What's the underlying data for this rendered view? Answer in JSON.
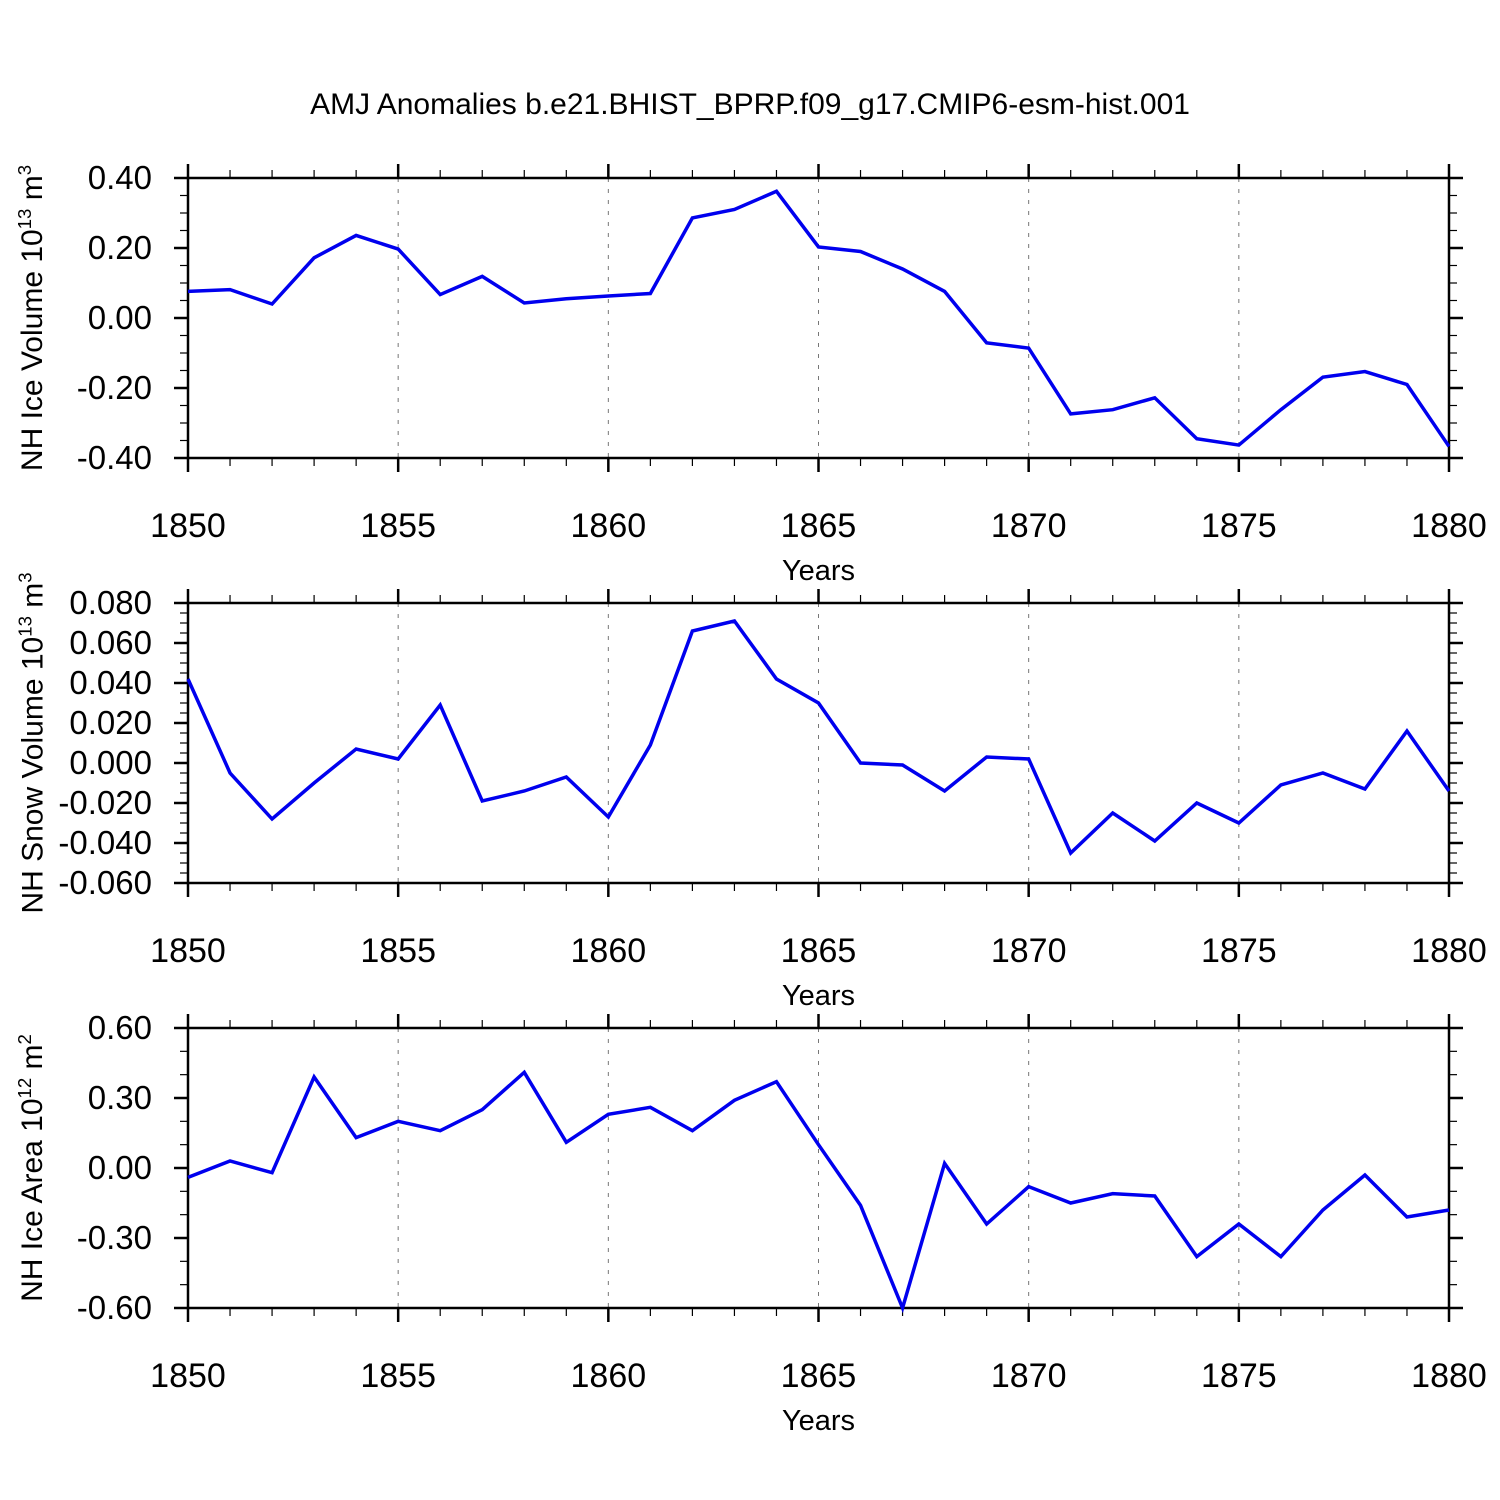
{
  "title": "AMJ Anomalies b.e21.BHIST_BPRP.f09_g17.CMIP6-esm-hist.001",
  "colors": {
    "line": "#0000EE",
    "grid": "#777777",
    "axis": "#000000",
    "background": "#ffffff"
  },
  "x_axis": {
    "label": "Years",
    "start": 1850,
    "end": 1880,
    "major_ticks": [
      1850,
      1855,
      1860,
      1865,
      1870,
      1875,
      1880
    ],
    "tick_labels": [
      "1850",
      "1855",
      "1860",
      "1865",
      "1870",
      "1875",
      "1880"
    ],
    "minor_step": 1,
    "gridline_years": [
      1855,
      1860,
      1865,
      1870,
      1875
    ]
  },
  "chart_data": [
    {
      "type": "line",
      "name": "nh-ice-volume",
      "ylabel": "NH Ice Volume 10^13 m^3",
      "ylabel_parts": [
        [
          "NH Ice Volume 10",
          false
        ],
        [
          "13",
          true
        ],
        [
          " m",
          false
        ],
        [
          "3",
          true
        ]
      ],
      "xlabel": "Years",
      "ylim": [
        -0.4,
        0.4
      ],
      "ytick_values": [
        0.4,
        0.2,
        0.0,
        -0.2,
        -0.4
      ],
      "ytick_labels": [
        "0.40",
        "0.20",
        "0.00",
        "-0.20",
        "-0.40"
      ],
      "yminor_step": 0.05,
      "grid": "x-dashed",
      "legend": "none",
      "x": [
        1850,
        1851,
        1852,
        1853,
        1854,
        1855,
        1856,
        1857,
        1858,
        1859,
        1860,
        1861,
        1862,
        1863,
        1864,
        1865,
        1866,
        1867,
        1868,
        1869,
        1870,
        1871,
        1872,
        1873,
        1874,
        1875,
        1876,
        1877,
        1878,
        1879,
        1880
      ],
      "values": [
        0.076,
        0.081,
        0.04,
        0.172,
        0.236,
        0.197,
        0.067,
        0.119,
        0.043,
        0.055,
        0.063,
        0.07,
        0.286,
        0.31,
        0.362,
        0.203,
        0.19,
        0.14,
        0.076,
        -0.071,
        -0.086,
        -0.274,
        -0.262,
        -0.228,
        -0.345,
        -0.363,
        -0.262,
        -0.169,
        -0.153,
        -0.19,
        -0.367
      ]
    },
    {
      "type": "line",
      "name": "nh-snow-volume",
      "ylabel": "NH Snow Volume 10^13 m^3",
      "ylabel_parts": [
        [
          "NH Snow Volume 10",
          false
        ],
        [
          "13",
          true
        ],
        [
          " m",
          false
        ],
        [
          "3",
          true
        ]
      ],
      "xlabel": "Years",
      "ylim": [
        -0.06,
        0.08
      ],
      "ytick_values": [
        0.08,
        0.06,
        0.04,
        0.02,
        0.0,
        -0.02,
        -0.04,
        -0.06
      ],
      "ytick_labels": [
        "0.080",
        "0.060",
        "0.040",
        "0.020",
        "0.000",
        "-0.020",
        "-0.040",
        "-0.060"
      ],
      "yminor_step": 0.005,
      "grid": "x-dashed",
      "legend": "none",
      "x": [
        1850,
        1851,
        1852,
        1853,
        1854,
        1855,
        1856,
        1857,
        1858,
        1859,
        1860,
        1861,
        1862,
        1863,
        1864,
        1865,
        1866,
        1867,
        1868,
        1869,
        1870,
        1871,
        1872,
        1873,
        1874,
        1875,
        1876,
        1877,
        1878,
        1879,
        1880
      ],
      "values": [
        0.042,
        -0.005,
        -0.028,
        -0.01,
        0.007,
        0.002,
        0.029,
        -0.019,
        -0.014,
        -0.007,
        -0.027,
        0.009,
        0.066,
        0.071,
        0.042,
        0.03,
        0.0,
        -0.001,
        -0.014,
        0.003,
        0.002,
        -0.045,
        -0.025,
        -0.039,
        -0.02,
        -0.03,
        -0.011,
        -0.005,
        -0.013,
        0.016,
        -0.014
      ]
    },
    {
      "type": "line",
      "name": "nh-ice-area",
      "ylabel": "NH Ice Area 10^12 m^2",
      "ylabel_parts": [
        [
          "NH Ice Area 10",
          false
        ],
        [
          "12",
          true
        ],
        [
          " m",
          false
        ],
        [
          "2",
          true
        ]
      ],
      "xlabel": "Years",
      "ylim": [
        -0.6,
        0.6
      ],
      "ytick_values": [
        0.6,
        0.3,
        0.0,
        -0.3,
        -0.6
      ],
      "ytick_labels": [
        "0.60",
        "0.30",
        "0.00",
        "-0.30",
        "-0.60"
      ],
      "yminor_step": 0.1,
      "grid": "x-dashed",
      "legend": "none",
      "x": [
        1850,
        1851,
        1852,
        1853,
        1854,
        1855,
        1856,
        1857,
        1858,
        1859,
        1860,
        1861,
        1862,
        1863,
        1864,
        1865,
        1866,
        1867,
        1868,
        1869,
        1870,
        1871,
        1872,
        1873,
        1874,
        1875,
        1876,
        1877,
        1878,
        1879,
        1880
      ],
      "values": [
        -0.04,
        0.03,
        -0.02,
        0.39,
        0.13,
        0.2,
        0.16,
        0.25,
        0.41,
        0.11,
        0.23,
        0.26,
        0.16,
        0.29,
        0.37,
        0.1,
        -0.16,
        -0.6,
        0.02,
        -0.24,
        -0.08,
        -0.15,
        -0.11,
        -0.12,
        -0.38,
        -0.24,
        -0.38,
        -0.18,
        -0.03,
        -0.21,
        -0.18
      ]
    }
  ]
}
